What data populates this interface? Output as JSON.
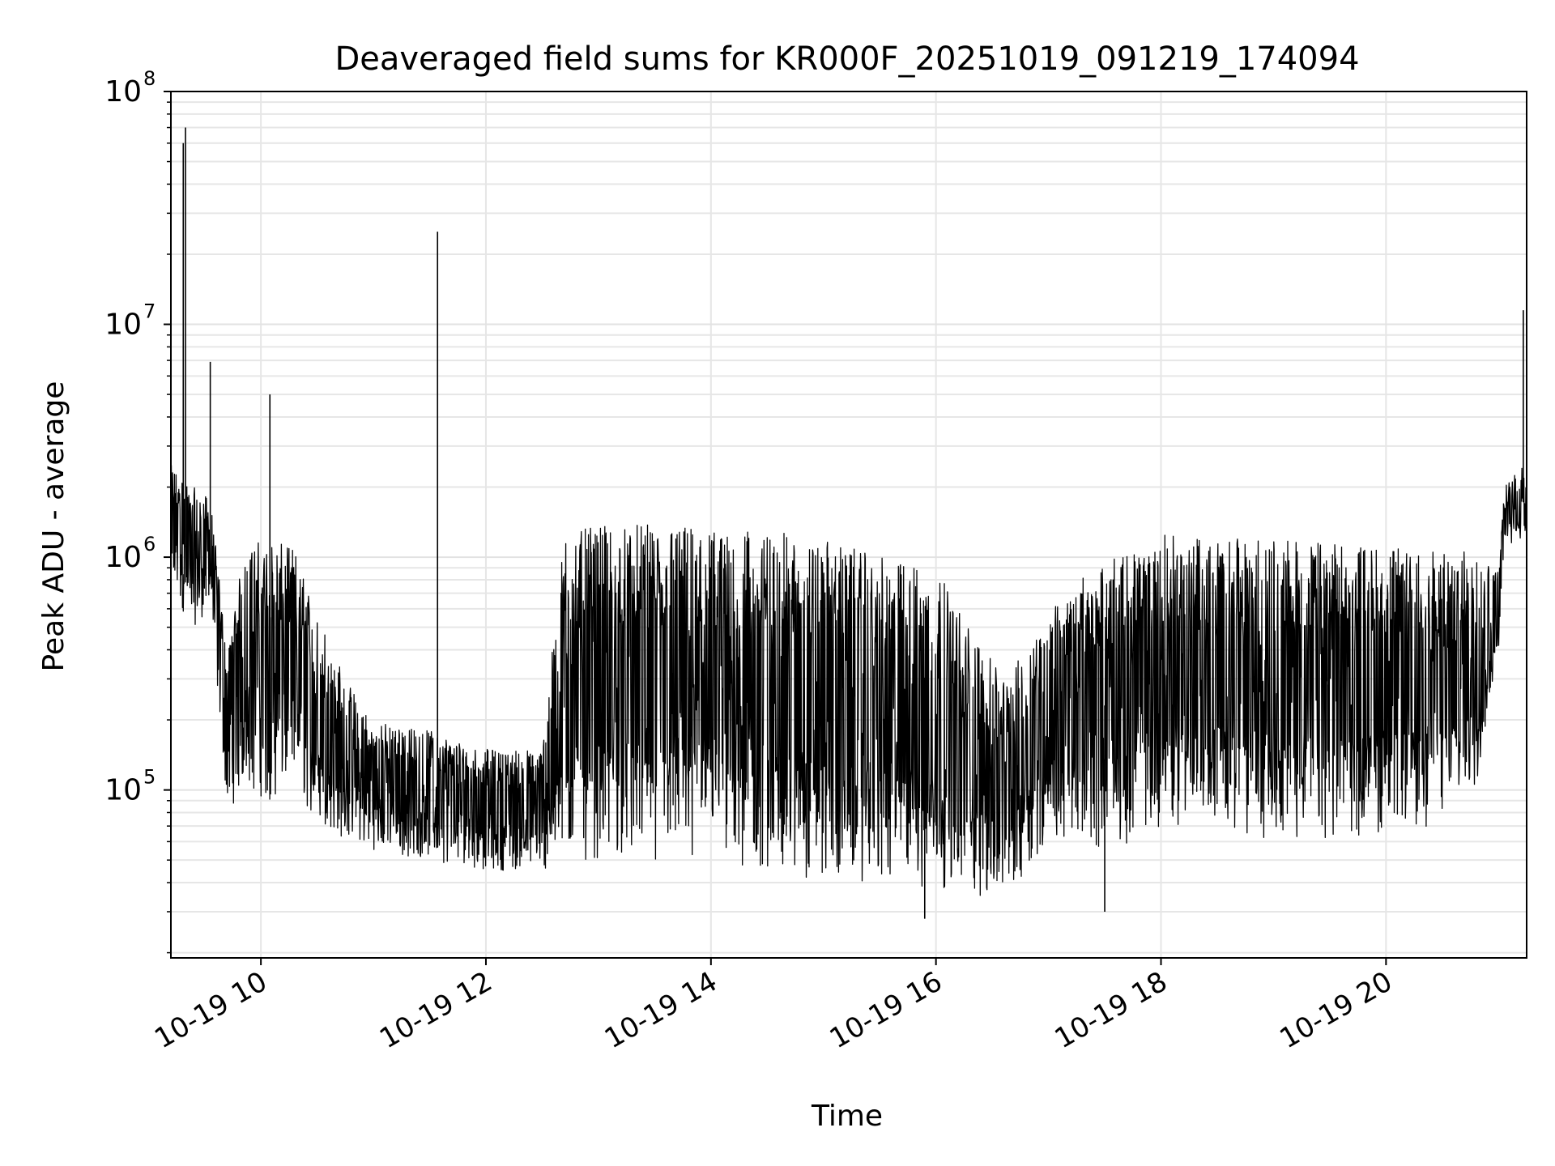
{
  "chart_data": {
    "type": "line",
    "title": "Deaveraged field sums for KR000F_20251019_091219_174094",
    "xlabel": "Time",
    "ylabel": "Peak ADU - average",
    "yscale": "log",
    "xlim": [
      9.2,
      21.25
    ],
    "ylim": [
      19000,
      100000000
    ],
    "grid": true,
    "x_ticks": [
      {
        "value": 10,
        "label": "10-19 10"
      },
      {
        "value": 12,
        "label": "10-19 12"
      },
      {
        "value": 14,
        "label": "10-19 14"
      },
      {
        "value": 16,
        "label": "10-19 16"
      },
      {
        "value": 18,
        "label": "10-19 18"
      },
      {
        "value": 20,
        "label": "10-19 20"
      }
    ],
    "y_ticks": [
      {
        "value": 100000,
        "base": "10",
        "exp": "5"
      },
      {
        "value": 1000000,
        "base": "10",
        "exp": "6"
      },
      {
        "value": 10000000,
        "base": "10",
        "exp": "7"
      },
      {
        "value": 100000000,
        "base": "10",
        "exp": "8"
      }
    ],
    "series": [
      {
        "name": "Peak ADU - average",
        "color": "#000000",
        "envelope": [
          {
            "x": 9.2,
            "lo": 700000,
            "hi": 2500000
          },
          {
            "x": 9.4,
            "lo": 500000,
            "hi": 2000000
          },
          {
            "x": 9.55,
            "lo": 600000,
            "hi": 1800000
          },
          {
            "x": 9.7,
            "lo": 80000,
            "hi": 400000
          },
          {
            "x": 9.85,
            "lo": 100000,
            "hi": 1100000
          },
          {
            "x": 10.0,
            "lo": 90000,
            "hi": 1200000
          },
          {
            "x": 10.3,
            "lo": 90000,
            "hi": 1100000
          },
          {
            "x": 10.5,
            "lo": 70000,
            "hi": 600000
          },
          {
            "x": 10.75,
            "lo": 60000,
            "hi": 300000
          },
          {
            "x": 11.0,
            "lo": 55000,
            "hi": 200000
          },
          {
            "x": 11.5,
            "lo": 50000,
            "hi": 180000
          },
          {
            "x": 12.0,
            "lo": 45000,
            "hi": 150000
          },
          {
            "x": 12.5,
            "lo": 45000,
            "hi": 150000
          },
          {
            "x": 12.7,
            "lo": 45000,
            "hi": 1300000
          },
          {
            "x": 13.0,
            "lo": 50000,
            "hi": 1350000
          },
          {
            "x": 13.5,
            "lo": 50000,
            "hi": 1400000
          },
          {
            "x": 14.0,
            "lo": 50000,
            "hi": 1350000
          },
          {
            "x": 14.5,
            "lo": 45000,
            "hi": 1300000
          },
          {
            "x": 15.0,
            "lo": 40000,
            "hi": 1200000
          },
          {
            "x": 15.5,
            "lo": 40000,
            "hi": 1000000
          },
          {
            "x": 16.0,
            "lo": 38000,
            "hi": 900000
          },
          {
            "x": 16.3,
            "lo": 35000,
            "hi": 500000
          },
          {
            "x": 16.6,
            "lo": 32000,
            "hi": 300000
          },
          {
            "x": 16.8,
            "lo": 45000,
            "hi": 400000
          },
          {
            "x": 17.0,
            "lo": 60000,
            "hi": 600000
          },
          {
            "x": 17.4,
            "lo": 55000,
            "hi": 900000
          },
          {
            "x": 17.8,
            "lo": 60000,
            "hi": 1100000
          },
          {
            "x": 18.0,
            "lo": 70000,
            "hi": 1250000
          },
          {
            "x": 18.5,
            "lo": 70000,
            "hi": 1200000
          },
          {
            "x": 19.0,
            "lo": 60000,
            "hi": 1200000
          },
          {
            "x": 19.5,
            "lo": 60000,
            "hi": 1150000
          },
          {
            "x": 20.0,
            "lo": 65000,
            "hi": 1100000
          },
          {
            "x": 20.5,
            "lo": 70000,
            "hi": 1050000
          },
          {
            "x": 20.8,
            "lo": 100000,
            "hi": 1100000
          },
          {
            "x": 21.0,
            "lo": 400000,
            "hi": 900000
          },
          {
            "x": 21.05,
            "lo": 1100000,
            "hi": 2000000
          },
          {
            "x": 21.25,
            "lo": 1200000,
            "hi": 2600000
          }
        ],
        "spikes": [
          {
            "x": 9.33,
            "y": 70000000
          },
          {
            "x": 9.31,
            "y": 60000000
          },
          {
            "x": 9.55,
            "y": 6900000
          },
          {
            "x": 10.08,
            "y": 5000000
          },
          {
            "x": 11.57,
            "y": 25000000
          },
          {
            "x": 21.22,
            "y": 11500000
          },
          {
            "x": 15.9,
            "y": 28000
          },
          {
            "x": 17.5,
            "y": 30000
          }
        ]
      }
    ]
  }
}
